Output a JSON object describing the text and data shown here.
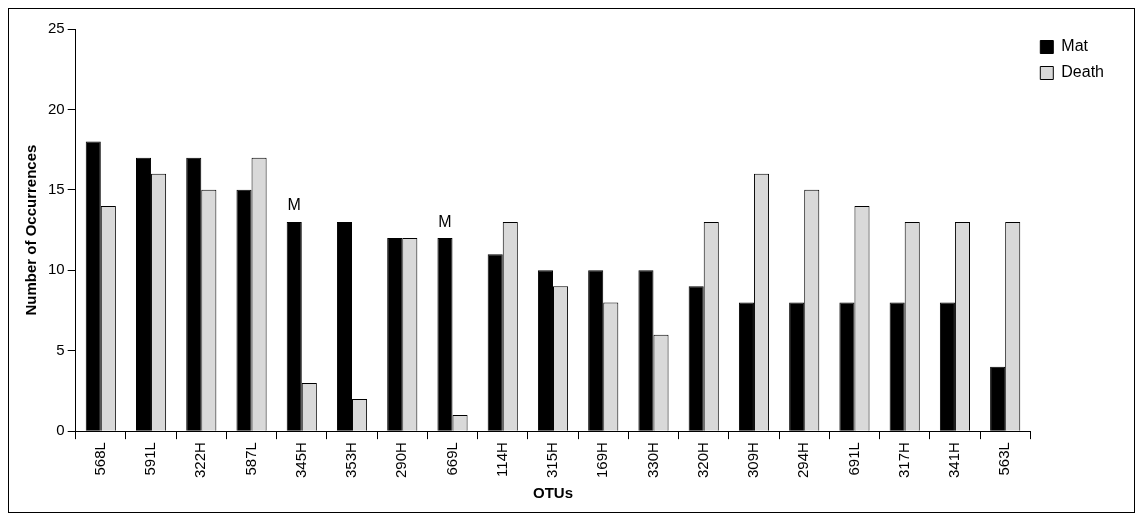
{
  "chart_data": {
    "type": "bar",
    "xlabel": "OTUs",
    "ylabel": "Number of Occurrences",
    "categories": [
      "568L",
      "591L",
      "322H",
      "587L",
      "345H",
      "353H",
      "290H",
      "669L",
      "114H",
      "315H",
      "169H",
      "330H",
      "320H",
      "309H",
      "294H",
      "691L",
      "317H",
      "341H",
      "563L"
    ],
    "series": [
      {
        "name": "Mat",
        "color": "#000000",
        "values": [
          18,
          17,
          17,
          15,
          13,
          13,
          12,
          12,
          11,
          10,
          10,
          10,
          9,
          8,
          8,
          8,
          8,
          8,
          4
        ]
      },
      {
        "name": "Death",
        "color": "#d9d9d9",
        "values": [
          14,
          16,
          15,
          17,
          3,
          2,
          12,
          1,
          13,
          9,
          8,
          6,
          13,
          16,
          15,
          14,
          13,
          13,
          13
        ]
      }
    ],
    "ylim": [
      0,
      25
    ],
    "yticks": [
      0,
      5,
      10,
      15,
      20,
      25
    ],
    "grid": false,
    "legend": "top right",
    "annotations": [
      {
        "text": "M",
        "x": "345H",
        "y": 13
      },
      {
        "text": "M",
        "x": "669L",
        "y": 12
      }
    ]
  }
}
